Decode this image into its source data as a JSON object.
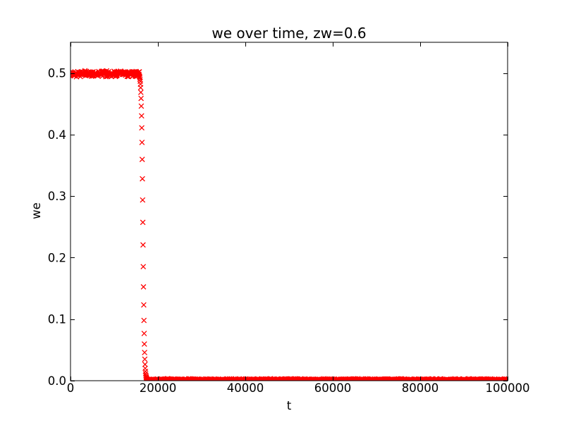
{
  "figure": {
    "title": "we over time, zw=0.6",
    "xlabel": "t",
    "ylabel": "we",
    "background": "#ffffff"
  },
  "chart_data": {
    "type": "scatter",
    "title": "we over time, zw=0.6",
    "xlabel": "t",
    "ylabel": "we",
    "marker": "x",
    "marker_color": "#ff0000",
    "axis_color": "#000000",
    "grid": false,
    "legend": null,
    "xlim": [
      0,
      100000
    ],
    "ylim": [
      0,
      0.55
    ],
    "xticks": [
      0,
      20000,
      40000,
      60000,
      80000,
      100000
    ],
    "xtick_labels": [
      "0",
      "20000",
      "40000",
      "60000",
      "80000",
      "100000"
    ],
    "yticks": [
      0.0,
      0.1,
      0.2,
      0.3,
      0.4,
      0.5
    ],
    "ytick_labels": [
      "0.0",
      "0.1",
      "0.2",
      "0.3",
      "0.4",
      "0.5"
    ],
    "series": {
      "name": "we",
      "description": "we fluctuates around 0.50 until t~15800, collapses sigmoidally to ~0 between t~15800 and t~17700, then remains near 0.001 up to t=100000",
      "segments": [
        {
          "kind": "noisy-plateau",
          "t_start": 0,
          "t_end": 15750,
          "t_step": 75,
          "mean": 0.499,
          "noise_amp": 0.0055
        },
        {
          "kind": "transition-points",
          "points": [
            [
              15800,
              0.4943
            ],
            [
              15850,
              0.4925
            ],
            [
              15900,
              0.4899
            ],
            [
              15950,
              0.4865
            ],
            [
              16000,
              0.4821
            ],
            [
              16050,
              0.4763
            ],
            [
              16100,
              0.4687
            ],
            [
              16150,
              0.4588
            ],
            [
              16200,
              0.4463
            ],
            [
              16250,
              0.4305
            ],
            [
              16300,
              0.411
            ],
            [
              16350,
              0.3873
            ],
            [
              16400,
              0.3597
            ],
            [
              16450,
              0.3282
            ],
            [
              16500,
              0.2937
            ],
            [
              16550,
              0.2574
            ],
            [
              16600,
              0.2207
            ],
            [
              16650,
              0.1854
            ],
            [
              16700,
              0.1525
            ],
            [
              16750,
              0.1232
            ],
            [
              16800,
              0.098
            ],
            [
              16850,
              0.0768
            ],
            [
              16900,
              0.0596
            ],
            [
              16950,
              0.0458
            ],
            [
              17000,
              0.035
            ],
            [
              17050,
              0.0265
            ],
            [
              17100,
              0.02
            ],
            [
              17150,
              0.0151
            ],
            [
              17200,
              0.0113
            ],
            [
              17250,
              0.0085
            ],
            [
              17300,
              0.0064
            ],
            [
              17350,
              0.0047
            ],
            [
              17400,
              0.0035
            ],
            [
              17450,
              0.0027
            ],
            [
              17500,
              0.002
            ],
            [
              17550,
              0.0015
            ],
            [
              17600,
              0.0011
            ],
            [
              17650,
              0.0008
            ],
            [
              17700,
              0.0006
            ]
          ]
        },
        {
          "kind": "noisy-plateau",
          "t_start": 17750,
          "t_end": 100000,
          "t_step": 100,
          "mean": 0.0018,
          "noise_amp": 0.0016
        }
      ]
    }
  }
}
